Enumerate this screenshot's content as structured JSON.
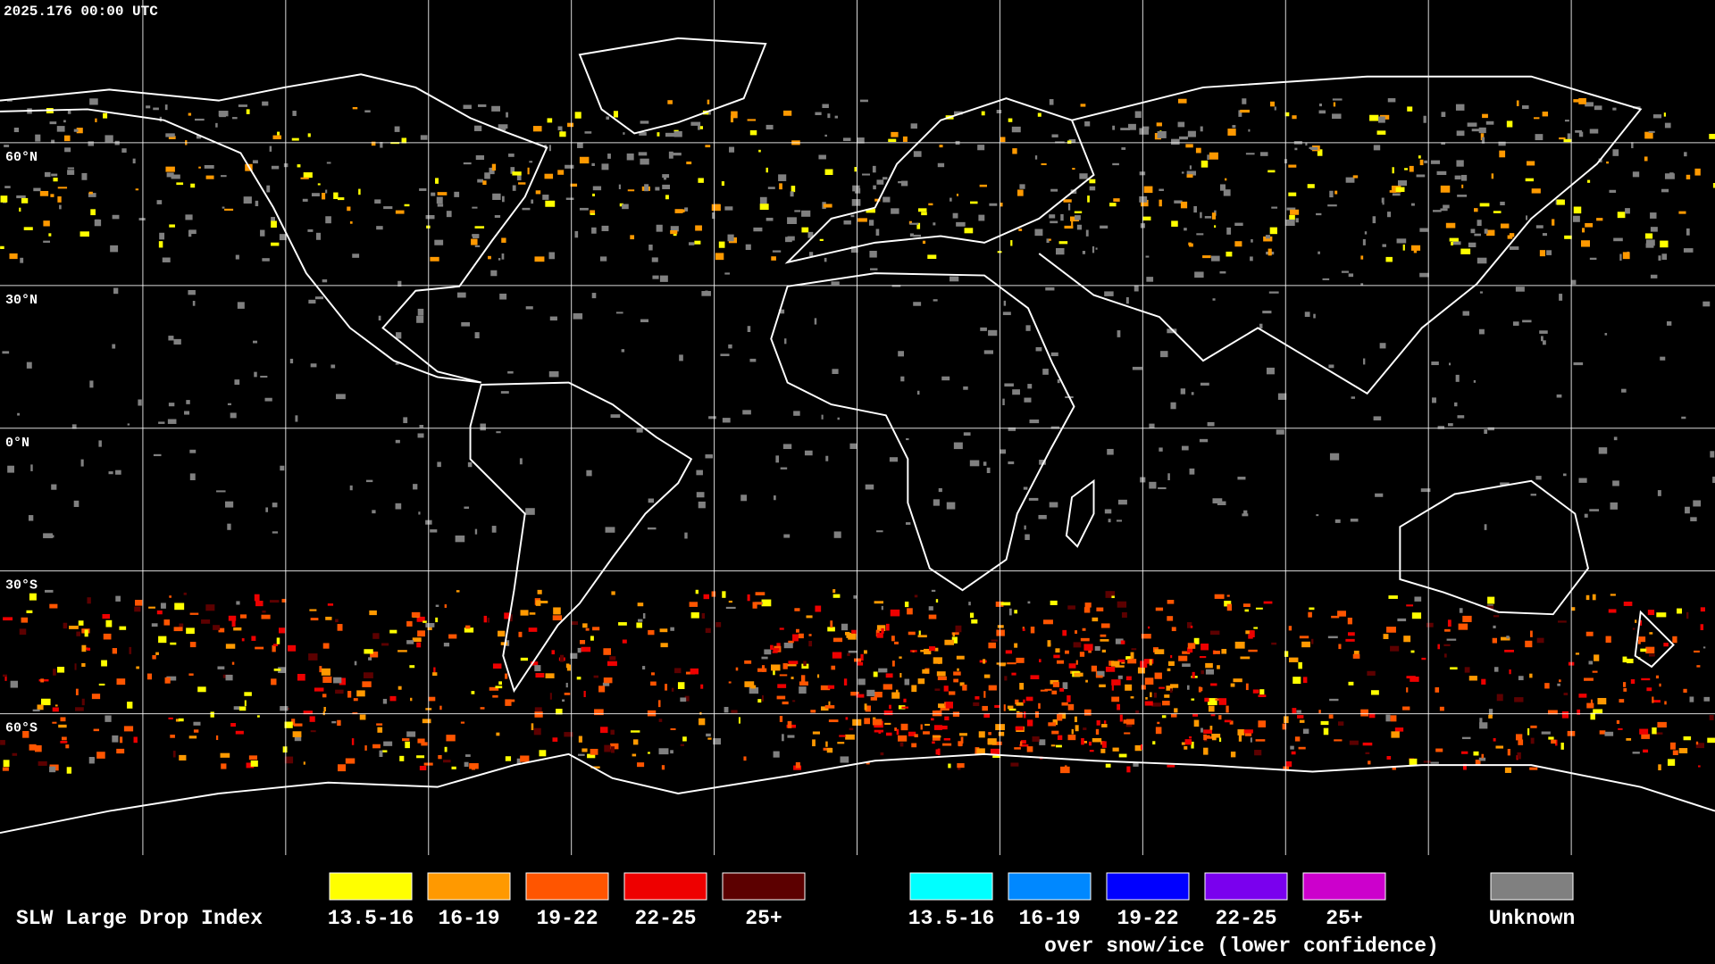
{
  "header": {
    "timestamp": "2025.176 00:00 UTC"
  },
  "map": {
    "latitude_labels": [
      "60°N",
      "30°N",
      "0°N",
      "30°S",
      "60°S"
    ]
  },
  "legend": {
    "title": "SLW Large Drop Index",
    "items": [
      {
        "label": "13.5-16",
        "color": "#ffff00"
      },
      {
        "label": "16-19",
        "color": "#ff9900"
      },
      {
        "label": "19-22",
        "color": "#ff5500"
      },
      {
        "label": "22-25",
        "color": "#ee0000"
      },
      {
        "label": "25+",
        "color": "#5c0000"
      }
    ],
    "snow_items": [
      {
        "label": "13.5-16",
        "color": "#00ffff"
      },
      {
        "label": "16-19",
        "color": "#0088ff"
      },
      {
        "label": "19-22",
        "color": "#0000ff"
      },
      {
        "label": "22-25",
        "color": "#7a00ee"
      },
      {
        "label": "25+",
        "color": "#cc00cc"
      }
    ],
    "snow_caption": "over snow/ice (lower confidence)",
    "unknown": {
      "label": "Unknown",
      "color": "#808080"
    }
  }
}
